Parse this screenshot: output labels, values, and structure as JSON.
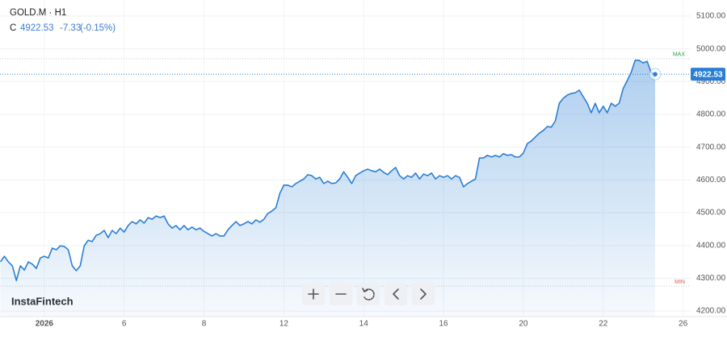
{
  "chart_data": {
    "type": "area",
    "symbol": "GOLD.M · H1",
    "ohlc_label": "C",
    "close": "4922.53",
    "change": "-7.33",
    "change_pct": "(-0.15%)",
    "watermark": "InstaFintech",
    "color": "#2a7fd4",
    "x": [
      -1.1,
      -1,
      -0.9,
      -0.8,
      -0.7,
      -0.6,
      -0.5,
      -0.4,
      -0.3,
      -0.2,
      -0.1,
      0,
      0.1,
      0.2,
      0.3,
      0.4,
      0.5,
      0.6,
      0.7,
      0.8,
      0.9,
      1,
      1.1,
      1.2,
      1.3,
      1.4,
      1.5,
      1.6,
      1.7,
      1.8,
      1.9,
      2,
      2.1,
      2.2,
      2.3,
      2.4,
      2.5,
      2.6,
      2.7,
      2.8,
      2.9,
      3,
      3.1,
      3.2,
      3.3,
      3.4,
      3.5,
      3.6,
      3.7,
      3.8,
      3.9,
      4,
      4.1,
      4.2,
      4.3,
      4.4,
      4.5,
      4.6,
      4.7,
      4.8,
      4.9,
      5,
      5.1,
      5.2,
      5.3,
      5.4,
      5.5,
      5.6,
      5.7,
      5.8,
      5.9,
      6,
      6.1,
      6.2,
      6.3,
      6.4,
      6.5,
      6.6,
      6.7,
      6.8,
      6.9,
      7,
      7.1,
      7.2,
      7.3,
      7.4,
      7.5,
      7.6,
      7.7,
      7.8,
      7.9,
      8,
      8.1,
      8.2,
      8.3,
      8.4,
      8.5,
      8.6,
      8.7,
      8.8,
      8.9,
      9,
      9.1,
      9.2,
      9.3,
      9.4,
      9.5,
      9.6,
      9.7,
      9.8,
      9.9,
      10,
      10.1,
      10.2,
      10.3,
      10.4,
      10.5,
      10.6,
      10.7,
      10.8,
      10.9,
      11,
      11.1,
      11.2,
      11.3,
      11.4,
      11.5,
      11.6,
      11.7,
      11.8,
      11.9,
      12,
      12.1,
      12.2,
      12.3,
      12.4,
      12.5,
      12.6,
      12.7,
      12.8,
      12.9,
      13,
      13.1,
      13.2,
      13.3,
      13.4,
      13.5,
      13.6,
      13.7,
      13.8,
      13.9,
      14,
      14.1,
      14.2,
      14.3,
      14.4,
      14.5,
      14.6,
      14.7,
      14.8,
      14.9,
      15,
      15.1,
      15.2,
      15.3
    ],
    "values": [
      4350,
      4367,
      4350,
      4338,
      4293,
      4338,
      4325,
      4350,
      4343,
      4330,
      4362,
      4367,
      4362,
      4392,
      4387,
      4399,
      4397,
      4387,
      4338,
      4323,
      4338,
      4399,
      4416,
      4412,
      4431,
      4436,
      4446,
      4424,
      4446,
      4436,
      4453,
      4441,
      4461,
      4473,
      4466,
      4478,
      4468,
      4485,
      4480,
      4490,
      4485,
      4490,
      4466,
      4453,
      4461,
      4448,
      4461,
      4448,
      4456,
      4448,
      4453,
      4443,
      4436,
      4429,
      4436,
      4429,
      4429,
      4448,
      4461,
      4473,
      4461,
      4466,
      4473,
      4466,
      4478,
      4471,
      4480,
      4498,
      4505,
      4515,
      4559,
      4584,
      4584,
      4579,
      4589,
      4596,
      4603,
      4616,
      4613,
      4603,
      4608,
      4589,
      4596,
      4589,
      4591,
      4603,
      4625,
      4608,
      4589,
      4613,
      4621,
      4628,
      4633,
      4628,
      4625,
      4633,
      4623,
      4616,
      4628,
      4638,
      4613,
      4603,
      4613,
      4608,
      4621,
      4603,
      4618,
      4613,
      4621,
      4603,
      4613,
      4608,
      4613,
      4603,
      4613,
      4608,
      4579,
      4589,
      4596,
      4603,
      4667,
      4667,
      4675,
      4670,
      4675,
      4670,
      4680,
      4675,
      4677,
      4670,
      4670,
      4682,
      4711,
      4719,
      4731,
      4743,
      4751,
      4763,
      4761,
      4780,
      4834,
      4849,
      4859,
      4864,
      4866,
      4874,
      4854,
      4834,
      4805,
      4834,
      4805,
      4825,
      4805,
      4834,
      4825,
      4834,
      4879,
      4903,
      4928,
      4965,
      4965,
      4957,
      4962,
      4928,
      4922.53
    ],
    "xlim": [
      -1.11,
      16.19
    ],
    "xticks": [
      {
        "value": 0,
        "label": "2026"
      },
      {
        "value": 2,
        "label": "6"
      },
      {
        "value": 4,
        "label": "8"
      },
      {
        "value": 6,
        "label": "12"
      },
      {
        "value": 8,
        "label": "14"
      },
      {
        "value": 10,
        "label": "16"
      },
      {
        "value": 12,
        "label": "20"
      },
      {
        "value": 14,
        "label": "22"
      },
      {
        "value": 16,
        "label": "26"
      }
    ],
    "ylim": [
      4183,
      5149
    ],
    "yticks": [
      {
        "value": 4200,
        "label": "4200.00"
      },
      {
        "value": 4300,
        "label": "4300.00"
      },
      {
        "value": 4400,
        "label": "4400.00"
      },
      {
        "value": 4500,
        "label": "4500.00"
      },
      {
        "value": 4600,
        "label": "4600.00"
      },
      {
        "value": 4700,
        "label": "4700.00"
      },
      {
        "value": 4800,
        "label": "4800.00"
      },
      {
        "value": 4900,
        "label": "4900.00"
      },
      {
        "value": 5000,
        "label": "5000.00"
      },
      {
        "value": 5100,
        "label": "5100.00"
      }
    ],
    "grid": true,
    "annotations": [
      {
        "label": "MAX",
        "value": 4970,
        "color": "#2e9e4f"
      },
      {
        "label": "MIN",
        "value": 4276,
        "color": "#e05a5a"
      }
    ]
  }
}
